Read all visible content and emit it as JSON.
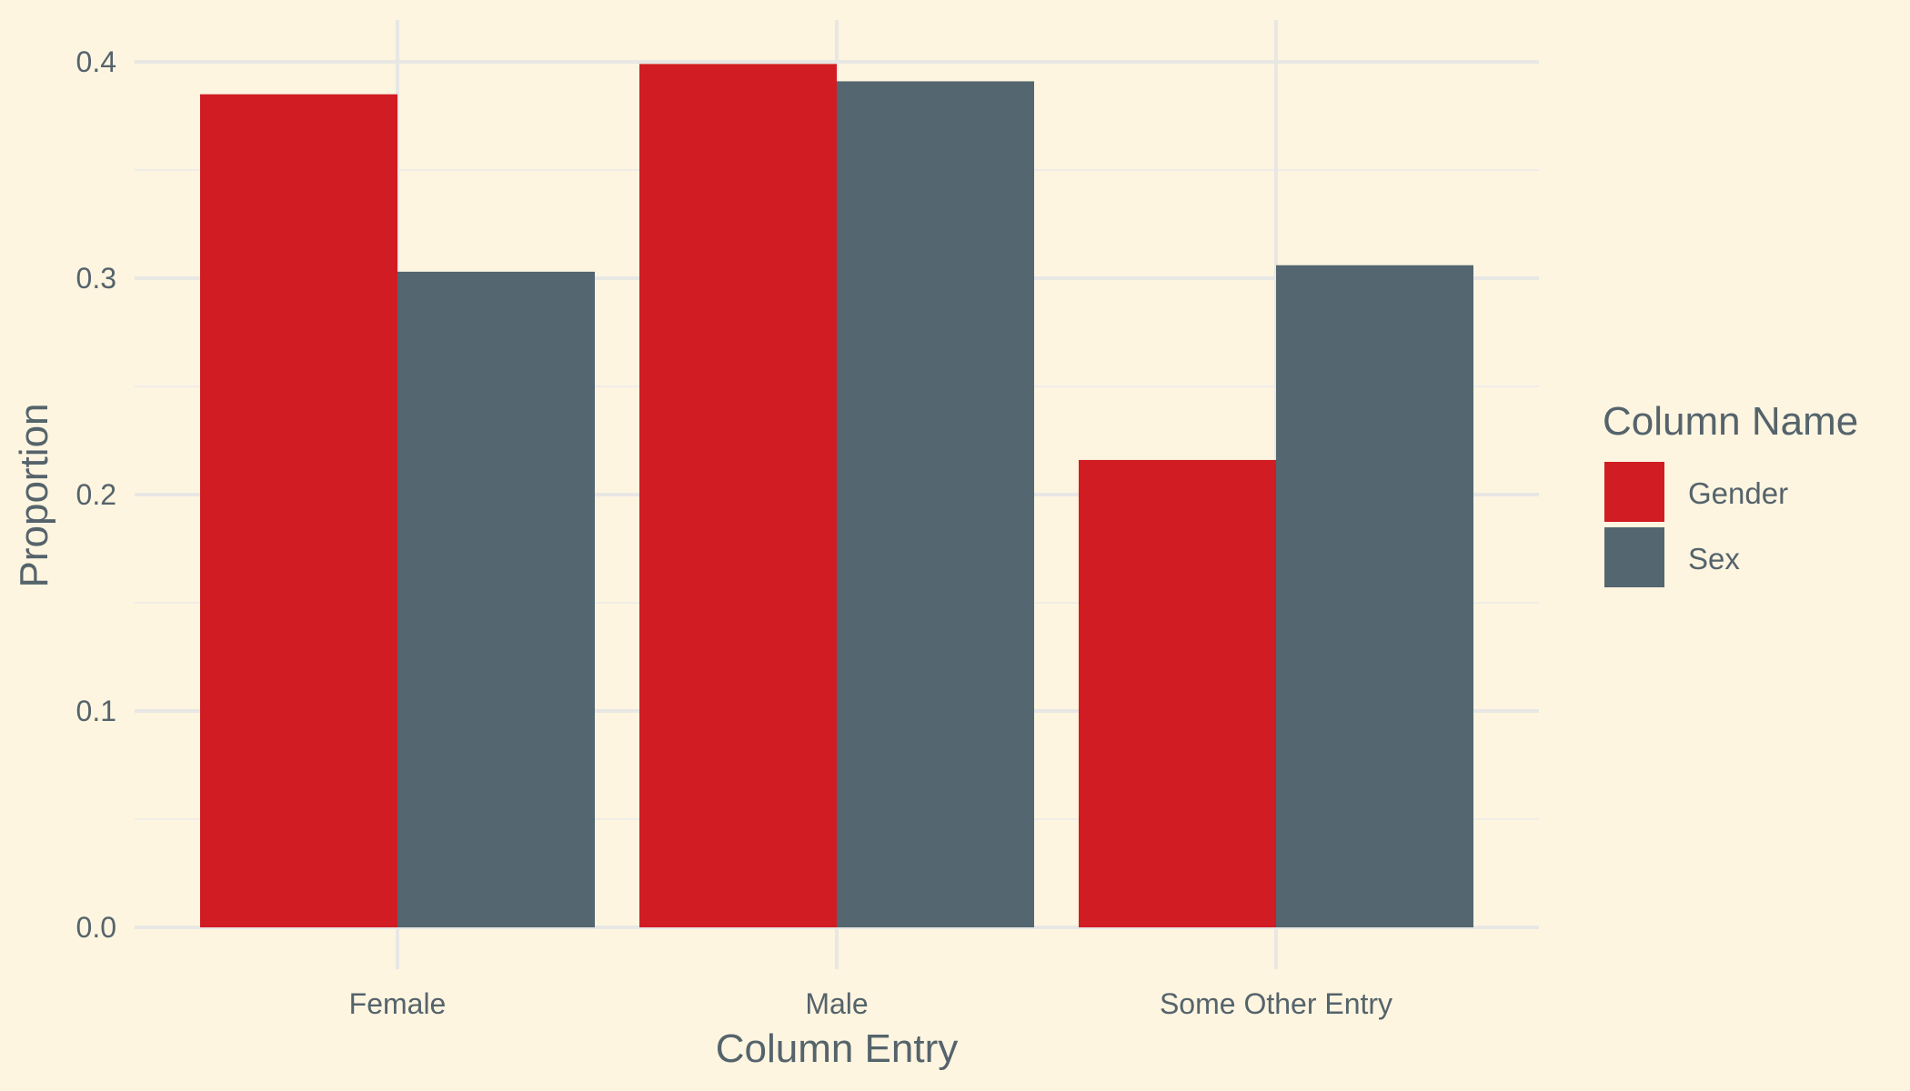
{
  "theme": {
    "background": "#fdf5e0",
    "grid_major": "#e8e7e4",
    "grid_minor": "#efede7",
    "text": "#55636b"
  },
  "chart_data": {
    "type": "bar",
    "categories": [
      "Female",
      "Male",
      "Some Other Entry"
    ],
    "series": [
      {
        "name": "Gender",
        "color": "#d01c22",
        "values": [
          0.385,
          0.399,
          0.216
        ]
      },
      {
        "name": "Sex",
        "color": "#546670",
        "values": [
          0.303,
          0.391,
          0.306
        ]
      }
    ],
    "xlabel": "Column Entry",
    "ylabel": "Proportion",
    "ylim": [
      0.0,
      0.42
    ],
    "yticks": [
      "0.0",
      "0.1",
      "0.2",
      "0.3",
      "0.4"
    ],
    "legend": {
      "title": "Column Name",
      "position": "right"
    },
    "grid": true
  }
}
